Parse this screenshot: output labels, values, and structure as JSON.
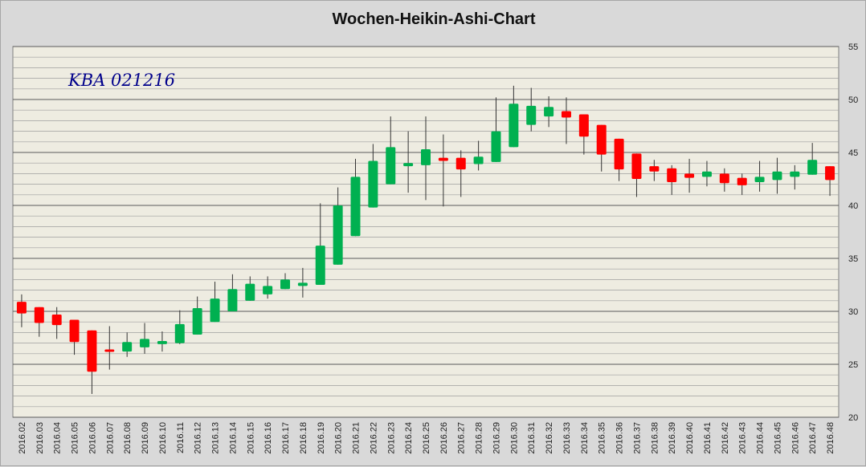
{
  "chart_data": {
    "type": "candlestick",
    "title": "Wochen-Heikin-Ashi-Chart",
    "annotation": "KBA 021216",
    "xlabel": "",
    "ylabel": "",
    "ylim": [
      20,
      55
    ],
    "yticks": [
      20,
      25,
      30,
      35,
      40,
      45,
      50,
      55
    ],
    "grid": true,
    "legend": "none",
    "colors": {
      "up": "#00b050",
      "down": "#ff0000",
      "plot_bg": "#eeece1",
      "grid_major": "#5a5a5a",
      "grid_minor": "#9e9e9e",
      "annotation": "#00008b"
    },
    "candles": [
      {
        "x": "2016.02",
        "open": 30.9,
        "close": 29.8,
        "high": 31.6,
        "low": 28.5
      },
      {
        "x": "2016.03",
        "open": 30.4,
        "close": 28.9,
        "high": 30.4,
        "low": 27.6
      },
      {
        "x": "2016.04",
        "open": 29.7,
        "close": 28.7,
        "high": 30.4,
        "low": 27.4
      },
      {
        "x": "2016.05",
        "open": 29.2,
        "close": 27.1,
        "high": 29.2,
        "low": 25.9
      },
      {
        "x": "2016.06",
        "open": 28.2,
        "close": 24.3,
        "high": 28.2,
        "low": 22.2
      },
      {
        "x": "2016.07",
        "open": 26.4,
        "close": 26.2,
        "high": 28.6,
        "low": 24.5
      },
      {
        "x": "2016.08",
        "open": 26.2,
        "close": 27.1,
        "high": 28.0,
        "low": 25.7
      },
      {
        "x": "2016.09",
        "open": 26.6,
        "close": 27.4,
        "high": 28.9,
        "low": 26.0
      },
      {
        "x": "2016.10",
        "open": 26.9,
        "close": 27.2,
        "high": 28.1,
        "low": 26.2
      },
      {
        "x": "2016.11",
        "open": 27.0,
        "close": 28.8,
        "high": 30.1,
        "low": 26.9
      },
      {
        "x": "2016.12",
        "open": 27.8,
        "close": 30.3,
        "high": 31.4,
        "low": 27.8
      },
      {
        "x": "2016.13",
        "open": 29.0,
        "close": 31.2,
        "high": 32.8,
        "low": 29.0
      },
      {
        "x": "2016.14",
        "open": 30.0,
        "close": 32.1,
        "high": 33.5,
        "low": 30.0
      },
      {
        "x": "2016.15",
        "open": 31.0,
        "close": 32.6,
        "high": 33.3,
        "low": 31.0
      },
      {
        "x": "2016.16",
        "open": 31.6,
        "close": 32.4,
        "high": 33.3,
        "low": 31.2
      },
      {
        "x": "2016.17",
        "open": 32.1,
        "close": 33.0,
        "high": 33.6,
        "low": 32.1
      },
      {
        "x": "2016.18",
        "open": 32.4,
        "close": 32.7,
        "high": 34.1,
        "low": 31.3
      },
      {
        "x": "2016.19",
        "open": 32.5,
        "close": 36.2,
        "high": 40.2,
        "low": 32.5
      },
      {
        "x": "2016.20",
        "open": 34.4,
        "close": 40.0,
        "high": 41.7,
        "low": 34.4
      },
      {
        "x": "2016.21",
        "open": 37.1,
        "close": 42.7,
        "high": 44.4,
        "low": 37.1
      },
      {
        "x": "2016.22",
        "open": 39.8,
        "close": 44.2,
        "high": 45.8,
        "low": 39.8
      },
      {
        "x": "2016.23",
        "open": 42.0,
        "close": 45.5,
        "high": 48.4,
        "low": 42.0
      },
      {
        "x": "2016.24",
        "open": 43.7,
        "close": 44.0,
        "high": 47.0,
        "low": 41.2
      },
      {
        "x": "2016.25",
        "open": 43.8,
        "close": 45.3,
        "high": 48.4,
        "low": 40.5
      },
      {
        "x": "2016.26",
        "open": 44.5,
        "close": 44.2,
        "high": 46.7,
        "low": 39.9
      },
      {
        "x": "2016.27",
        "open": 44.5,
        "close": 43.4,
        "high": 45.2,
        "low": 40.8
      },
      {
        "x": "2016.28",
        "open": 43.9,
        "close": 44.6,
        "high": 46.1,
        "low": 43.3
      },
      {
        "x": "2016.29",
        "open": 44.1,
        "close": 47.0,
        "high": 50.2,
        "low": 44.1
      },
      {
        "x": "2016.30",
        "open": 45.5,
        "close": 49.6,
        "high": 51.3,
        "low": 45.5
      },
      {
        "x": "2016.31",
        "open": 47.6,
        "close": 49.4,
        "high": 51.1,
        "low": 47.0
      },
      {
        "x": "2016.32",
        "open": 48.4,
        "close": 49.3,
        "high": 50.3,
        "low": 47.4
      },
      {
        "x": "2016.33",
        "open": 48.9,
        "close": 48.3,
        "high": 50.2,
        "low": 45.8
      },
      {
        "x": "2016.34",
        "open": 48.6,
        "close": 46.5,
        "high": 48.6,
        "low": 44.8
      },
      {
        "x": "2016.35",
        "open": 47.6,
        "close": 44.8,
        "high": 47.6,
        "low": 43.2
      },
      {
        "x": "2016.36",
        "open": 46.3,
        "close": 43.4,
        "high": 46.3,
        "low": 42.3
      },
      {
        "x": "2016.37",
        "open": 44.9,
        "close": 42.5,
        "high": 44.9,
        "low": 40.8
      },
      {
        "x": "2016.38",
        "open": 43.7,
        "close": 43.2,
        "high": 44.3,
        "low": 42.3
      },
      {
        "x": "2016.39",
        "open": 43.5,
        "close": 42.2,
        "high": 43.8,
        "low": 41.0
      },
      {
        "x": "2016.40",
        "open": 43.0,
        "close": 42.6,
        "high": 44.4,
        "low": 41.2
      },
      {
        "x": "2016.41",
        "open": 42.7,
        "close": 43.2,
        "high": 44.2,
        "low": 41.8
      },
      {
        "x": "2016.42",
        "open": 43.0,
        "close": 42.1,
        "high": 43.5,
        "low": 41.3
      },
      {
        "x": "2016.43",
        "open": 42.6,
        "close": 41.9,
        "high": 43.0,
        "low": 41.0
      },
      {
        "x": "2016.44",
        "open": 42.2,
        "close": 42.7,
        "high": 44.2,
        "low": 41.3
      },
      {
        "x": "2016.45",
        "open": 42.4,
        "close": 43.2,
        "high": 44.5,
        "low": 41.1
      },
      {
        "x": "2016.46",
        "open": 42.7,
        "close": 43.2,
        "high": 43.8,
        "low": 41.5
      },
      {
        "x": "2016.47",
        "open": 42.9,
        "close": 44.3,
        "high": 45.9,
        "low": 42.9
      },
      {
        "x": "2016.48",
        "open": 43.7,
        "close": 42.4,
        "high": 43.7,
        "low": 40.9
      }
    ]
  }
}
